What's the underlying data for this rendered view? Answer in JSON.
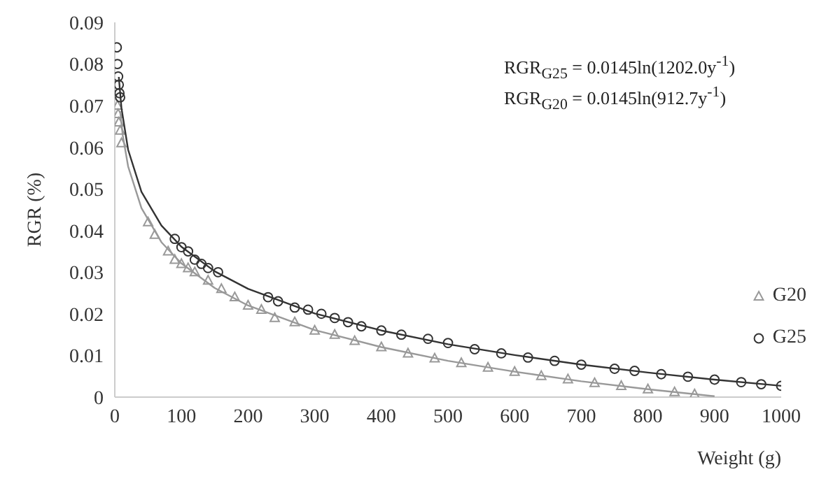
{
  "chart_data": {
    "type": "scatter",
    "xlabel": "Weight (g)",
    "ylabel": "RGR (%)",
    "xlim": [
      0,
      1000
    ],
    "xticks": [
      0,
      100,
      200,
      300,
      400,
      500,
      600,
      700,
      800,
      900,
      1000
    ],
    "ylim": [
      0,
      0.09
    ],
    "yticks": [
      0,
      0.01,
      0.02,
      0.03,
      0.04,
      0.05,
      0.06,
      0.07,
      0.08,
      0.09
    ],
    "grid": false,
    "legend": "right",
    "annotations": [
      "RGR$_{G25}$ = 0.0145ln(1202.0y$^{-1}$)",
      "RGR$_{G20}$ = 0.0145ln(912.7y$^{-1}$)"
    ],
    "series": [
      {
        "name": "G20",
        "marker": "triangle",
        "color": "#999999",
        "x": [
          4,
          5,
          6,
          8,
          10,
          50,
          60,
          80,
          90,
          100,
          110,
          120,
          140,
          160,
          180,
          200,
          220,
          240,
          270,
          300,
          330,
          360,
          400,
          440,
          480,
          520,
          560,
          600,
          640,
          680,
          720,
          760,
          800,
          840,
          870
        ],
        "values": [
          0.07,
          0.068,
          0.066,
          0.064,
          0.061,
          0.042,
          0.039,
          0.035,
          0.033,
          0.032,
          0.031,
          0.03,
          0.028,
          0.026,
          0.024,
          0.022,
          0.021,
          0.019,
          0.018,
          0.016,
          0.015,
          0.0135,
          0.012,
          0.0105,
          0.0093,
          0.0082,
          0.0071,
          0.0061,
          0.0051,
          0.0043,
          0.0034,
          0.0027,
          0.0019,
          0.0012,
          0.0007
        ]
      },
      {
        "name": "G25",
        "marker": "circle",
        "color": "#333333",
        "x": [
          3,
          4,
          5,
          6,
          7,
          8,
          90,
          100,
          110,
          120,
          130,
          140,
          155,
          230,
          245,
          270,
          290,
          310,
          330,
          350,
          370,
          400,
          430,
          470,
          500,
          540,
          580,
          620,
          660,
          700,
          750,
          780,
          820,
          860,
          900,
          940,
          970,
          1000
        ],
        "values": [
          0.084,
          0.08,
          0.077,
          0.075,
          0.073,
          0.072,
          0.038,
          0.036,
          0.035,
          0.033,
          0.032,
          0.031,
          0.03,
          0.024,
          0.023,
          0.0215,
          0.021,
          0.02,
          0.019,
          0.018,
          0.017,
          0.016,
          0.015,
          0.014,
          0.013,
          0.0115,
          0.0105,
          0.0095,
          0.0087,
          0.0078,
          0.0068,
          0.0063,
          0.0055,
          0.0049,
          0.0042,
          0.0036,
          0.0031,
          0.0027
        ]
      },
      {
        "type": "line",
        "marker": "none",
        "color": "#333333",
        "x": [
          6,
          10,
          20,
          40,
          70,
          100,
          150,
          200,
          300,
          400,
          500,
          600,
          700,
          800,
          900,
          1000
        ],
        "values": [
          0.0769,
          0.0694,
          0.0594,
          0.0493,
          0.0412,
          0.0361,
          0.0302,
          0.026,
          0.0201,
          0.016,
          0.0127,
          0.0101,
          0.0078,
          0.0059,
          0.0042,
          0.0027
        ]
      },
      {
        "type": "line",
        "marker": "none",
        "color": "#999999",
        "x": [
          8,
          12,
          20,
          40,
          70,
          100,
          150,
          200,
          300,
          400,
          500,
          600,
          700,
          800,
          900
        ],
        "values": [
          0.0687,
          0.0628,
          0.0554,
          0.0454,
          0.0372,
          0.0321,
          0.0262,
          0.022,
          0.0161,
          0.012,
          0.0087,
          0.0061,
          0.0038,
          0.0019,
          0.0002
        ]
      }
    ]
  }
}
